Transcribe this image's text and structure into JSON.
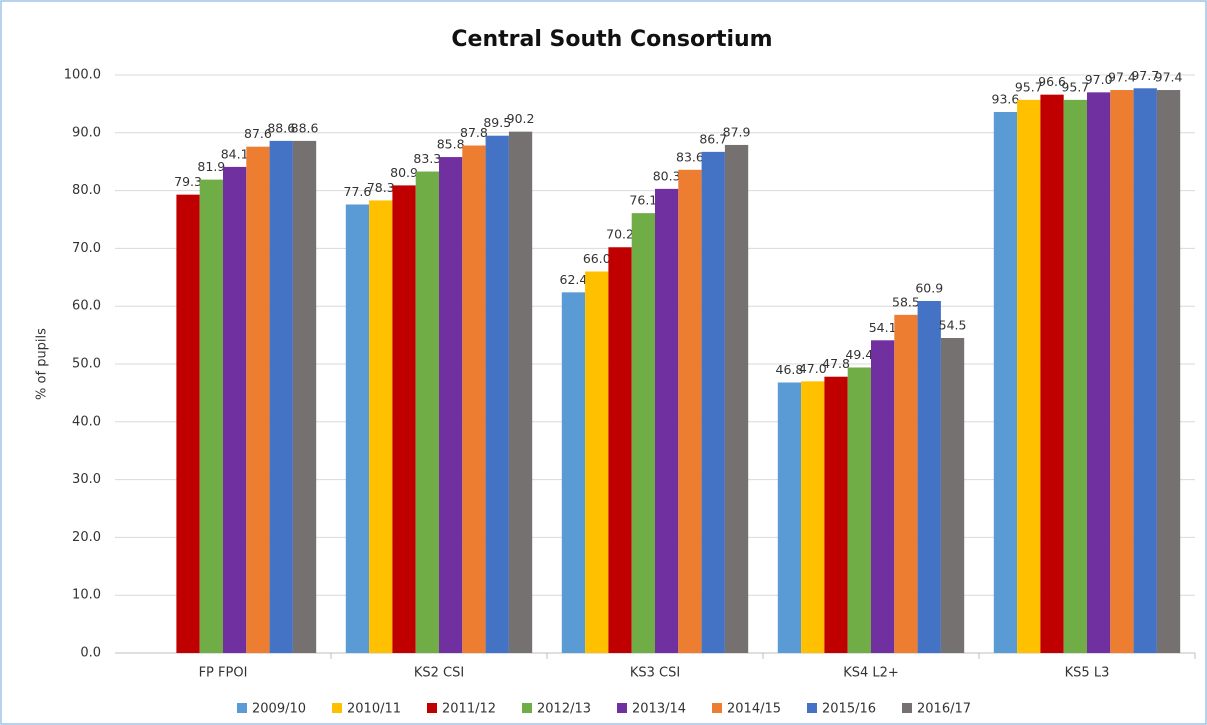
{
  "chart_data": {
    "type": "bar",
    "title": "Central South Consortium",
    "y_label": "% of pupils",
    "categories": [
      "FP FPOI",
      "KS2 CSI",
      "KS3 CSI",
      "KS4 L2+",
      "KS5 L3"
    ],
    "series": [
      {
        "name": "2009/10",
        "color": "#5b9bd5",
        "values": [
          null,
          77.6,
          62.4,
          46.8,
          93.6
        ],
        "value_labels": [
          null,
          "77.6",
          "62.4",
          "46.8",
          "93.6"
        ]
      },
      {
        "name": "2010/11",
        "color": "#ffc000",
        "values": [
          null,
          78.3,
          66.0,
          47.0,
          95.7
        ],
        "value_labels": [
          null,
          "78.3",
          "66.0",
          "47.0",
          "95.7"
        ]
      },
      {
        "name": "2011/12",
        "color": "#c00000",
        "values": [
          79.3,
          80.9,
          70.2,
          47.8,
          96.6
        ],
        "value_labels": [
          "79.3",
          "80.9",
          "70.2",
          "47.8",
          "96.6"
        ]
      },
      {
        "name": "2012/13",
        "color": "#70ad47",
        "values": [
          81.9,
          83.3,
          76.1,
          49.4,
          95.7
        ],
        "value_labels": [
          "81.9",
          "83.3",
          "76.1",
          "49.4",
          "95.7"
        ]
      },
      {
        "name": "2013/14",
        "color": "#7030a0",
        "values": [
          84.1,
          85.8,
          80.3,
          54.1,
          97.0
        ],
        "value_labels": [
          "84.1",
          "85.8",
          "80.3",
          "54.1",
          "97.0"
        ]
      },
      {
        "name": "2014/15",
        "color": "#ed7d31",
        "values": [
          87.6,
          87.8,
          83.6,
          58.5,
          97.4
        ],
        "value_labels": [
          "87.6",
          "87.8",
          "83.6",
          "58.5",
          "97.4"
        ]
      },
      {
        "name": "2015/16",
        "color": "#4472c4",
        "values": [
          88.6,
          89.5,
          86.7,
          60.9,
          97.7
        ],
        "value_labels": [
          "88.6",
          "89.5",
          "86.7",
          "60.9",
          "97.7"
        ]
      },
      {
        "name": "2016/17",
        "color": "#767171",
        "values": [
          88.6,
          90.2,
          87.9,
          54.5,
          97.4
        ],
        "value_labels": [
          "88.6",
          "90.2",
          "87.9",
          "54.5",
          "97.4"
        ]
      }
    ],
    "ylim": [
      0,
      100
    ],
    "yticks": [
      {
        "value": 0,
        "label": "0.0"
      },
      {
        "value": 10,
        "label": "10.0"
      },
      {
        "value": 20,
        "label": "20.0"
      },
      {
        "value": 30,
        "label": "30.0"
      },
      {
        "value": 40,
        "label": "40.0"
      },
      {
        "value": 50,
        "label": "50.0"
      },
      {
        "value": 60,
        "label": "60.0"
      },
      {
        "value": 70,
        "label": "70.0"
      },
      {
        "value": 80,
        "label": "80.0"
      },
      {
        "value": 90,
        "label": "90.0"
      },
      {
        "value": 100,
        "label": "100.0"
      }
    ],
    "grid": true,
    "legend": "bottom"
  }
}
